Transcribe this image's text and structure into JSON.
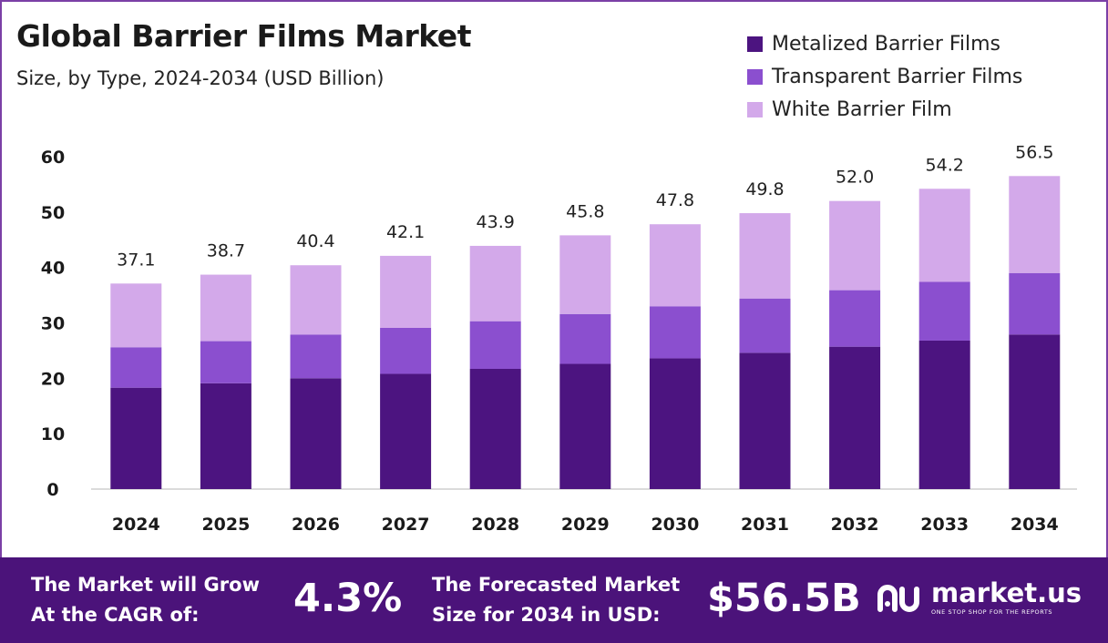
{
  "header": {
    "title": "Global Barrier Films Market",
    "subtitle": "Size, by Type, 2024-2034 (USD Billion)"
  },
  "colors": {
    "metalized": "#4c1480",
    "transparent": "#8b4fcf",
    "white": "#d3a9ea",
    "footer_bg": "#4b137a"
  },
  "chart_data": {
    "type": "bar",
    "stacked": true,
    "categories": [
      "2024",
      "2025",
      "2026",
      "2027",
      "2028",
      "2029",
      "2030",
      "2031",
      "2032",
      "2033",
      "2034"
    ],
    "series": [
      {
        "name": "Metalized Barrier Films",
        "values": [
          18.3,
          19.1,
          20.0,
          20.8,
          21.7,
          22.6,
          23.6,
          24.6,
          25.7,
          26.8,
          27.9
        ]
      },
      {
        "name": "Transparent Barrier Films",
        "values": [
          7.3,
          7.6,
          7.9,
          8.3,
          8.6,
          9.0,
          9.4,
          9.8,
          10.2,
          10.6,
          11.1
        ]
      },
      {
        "name": "White Barrier Film",
        "values": [
          11.5,
          12.0,
          12.5,
          13.0,
          13.6,
          14.2,
          14.8,
          15.4,
          16.1,
          16.8,
          17.5
        ]
      }
    ],
    "totals": [
      "37.1",
      "38.7",
      "40.4",
      "42.1",
      "43.9",
      "45.8",
      "47.8",
      "49.8",
      "52.0",
      "54.2",
      "56.5"
    ],
    "yticks": [
      "0",
      "10",
      "20",
      "30",
      "40",
      "50",
      "60"
    ],
    "ylim": [
      0,
      60
    ],
    "legend_position": "top-right",
    "grid": false
  },
  "footer": {
    "cagr_line1": "The Market will Grow",
    "cagr_line2": "At the CAGR of:",
    "cagr_value": "4.3%",
    "forecast_line1": "The Forecasted Market",
    "forecast_line2": "Size for 2034 in USD:",
    "forecast_value": "$56.5B",
    "brand_name": "market.us",
    "brand_tagline": "ONE STOP SHOP FOR THE REPORTS"
  }
}
